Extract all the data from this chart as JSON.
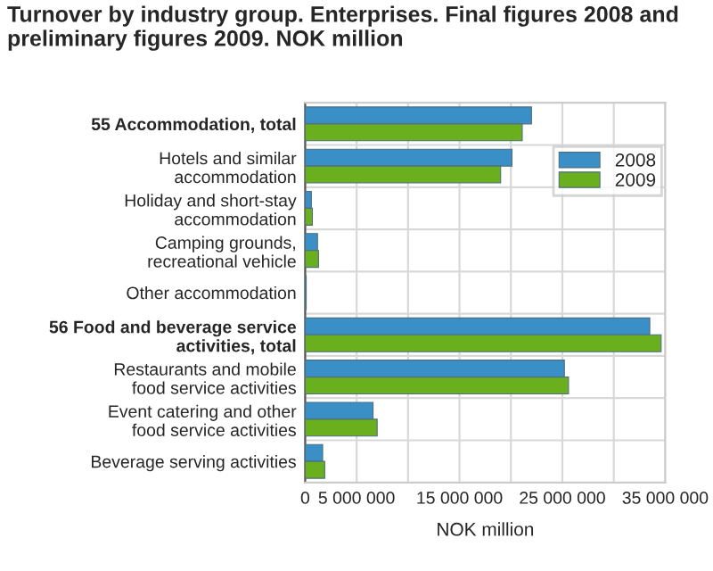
{
  "chart_data": {
    "type": "bar",
    "orientation": "horizontal",
    "title": "Turnover by industry group. Enterprises. Final figures 2008 and preliminary figures 2009. NOK million",
    "xlabel": "NOK million",
    "categories": [
      "55 Accommodation, total",
      "Hotels and similar\naccommodation",
      "Holiday and short-stay\naccommodation",
      "Camping grounds,\nrecreational vehicle",
      "Other accommodation",
      "56 Food and beverage service\nactivities, total",
      "Restaurants and mobile\nfood service activities",
      "Event catering and other\nfood service activities",
      "Beverage serving activities"
    ],
    "series": [
      {
        "name": "2008",
        "color": "#3a8fc6",
        "values": [
          22000000,
          20100000,
          600000,
          1200000,
          100000,
          33500000,
          25200000,
          6600000,
          1700000
        ]
      },
      {
        "name": "2009",
        "color": "#6aaf1e",
        "values": [
          21100000,
          19000000,
          700000,
          1300000,
          100000,
          34600000,
          25600000,
          7000000,
          1900000
        ]
      }
    ],
    "xlim": [
      0,
      35000000
    ],
    "xticks": [
      0,
      {
        "value": 5000000,
        "label": "5 000 000"
      },
      {
        "value": 10000000,
        "label": null
      },
      {
        "value": 15000000,
        "label": "15 000 000"
      },
      {
        "value": 20000000,
        "label": null
      },
      {
        "value": 25000000,
        "label": "25 000 000"
      },
      {
        "value": 30000000,
        "label": null
      },
      {
        "value": 35000000,
        "label": "35 000 000"
      }
    ],
    "grid": true,
    "legend": "right"
  }
}
